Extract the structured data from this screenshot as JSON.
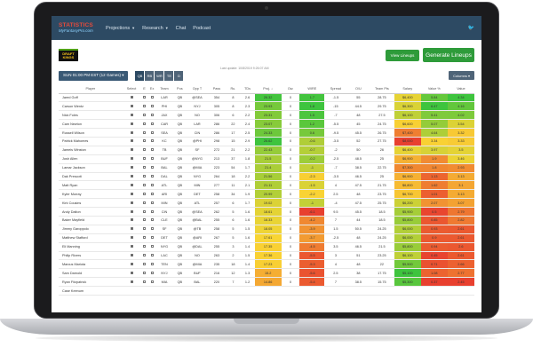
{
  "app": {
    "logo_line1": "STATISTICS",
    "logo_line2": "MyFantasyPro.com"
  },
  "nav": {
    "items": [
      {
        "label": "Projections",
        "dropdown": true
      },
      {
        "label": "Research",
        "dropdown": true
      },
      {
        "label": "Chat",
        "dropdown": false
      },
      {
        "label": "Podcast",
        "dropdown": false
      }
    ],
    "twitter_icon": "twitter-icon"
  },
  "toolbar": {
    "site_logo_text": "DRAFT KINGS",
    "view_lineups_label": "View Lineups",
    "generate_label": "Generate Lineups",
    "slate_label": "SUN 01:00 PM EST (12 Games) ▾",
    "positions": [
      "QB",
      "RB",
      "WR",
      "TE",
      "D"
    ],
    "active_position": "QB",
    "last_update": "Last update: 10/8/2019 9:26:07 AM",
    "columns_label": "Columns ▾"
  },
  "colors": {
    "nav_bg": "#2d4a63",
    "brand_green": "#2e9b3a",
    "proj_green": "#3ec43e",
    "salary_red": "#e8402f"
  },
  "table": {
    "headers": [
      "Player",
      "Select",
      "E",
      "Ex",
      "Team",
      "Pos",
      "Opp T",
      "Pass",
      "Ru.",
      "TDs",
      "Proj. ↓",
      "Ow.",
      "WIRE",
      "Spread",
      "O/U",
      "Team Pts",
      "Salary",
      "Value %",
      "Value"
    ],
    "rows": [
      {
        "player": "Jared Goff",
        "sel": true,
        "team": "LAR",
        "pos": "QB",
        "opp": "@SEA",
        "pass": "354",
        "ru": "8",
        "td": "2.6",
        "proj": "26.32",
        "own": "0",
        "wire": "1.7",
        "spread": "-1.5",
        "ou": "55",
        "tpts": "28.75",
        "salary": "$6,400",
        "vpct": "5.84",
        "value": "4.34"
      },
      {
        "player": "Carson Wentz",
        "sel": true,
        "team": "PHI",
        "pos": "QB",
        "opp": "NYJ",
        "pass": "305",
        "ru": "8",
        "td": "2.3",
        "proj": "23.93",
        "own": "0",
        "wire": "1.8",
        "spread": "-15",
        "ou": "44.5",
        "tpts": "29.75",
        "salary": "$6,300",
        "vpct": "6.47",
        "value": "4.16"
      },
      {
        "player": "Nick Foles",
        "sel": true,
        "team": "JAX",
        "pos": "QB",
        "opp": "NO",
        "pass": "306",
        "ru": "6",
        "td": "2.2",
        "proj": "23.31",
        "own": "0",
        "wire": "1.5",
        "spread": "-7",
        "ou": "48",
        "tpts": "27.5",
        "salary": "$6,100",
        "vpct": "5.41",
        "value": "4.02"
      },
      {
        "player": "Cam Newton",
        "sel": true,
        "team": "CAR",
        "pos": "QB",
        "opp": "LAR",
        "pass": "286",
        "ru": "22",
        "td": "2.4",
        "proj": "23.07",
        "own": "0",
        "wire": "1.2",
        "spread": "-5.5",
        "ou": "45",
        "tpts": "24.75",
        "salary": "$6,600",
        "vpct": "5.07",
        "value": "3.54"
      },
      {
        "player": "Russell Wilson",
        "sel": true,
        "team": "SEA",
        "pos": "QB",
        "opp": "CIN",
        "pass": "286",
        "ru": "17",
        "td": "2.5",
        "proj": "24.33",
        "own": "0",
        "wire": "0.6",
        "spread": "-9.5",
        "ou": "45.5",
        "tpts": "26.75",
        "salary": "$7,400",
        "vpct": "4.64",
        "value": "3.32"
      },
      {
        "player": "Patrick Mahomes",
        "sel": true,
        "team": "KC",
        "pos": "QB",
        "opp": "@PHI",
        "pass": "298",
        "ru": "15",
        "td": "2.9",
        "proj": "26.62",
        "own": "0",
        "wire": "-0.6",
        "spread": "-3.5",
        "ou": "52",
        "tpts": "27.75",
        "salary": "$8,000",
        "vpct": "3.34",
        "value": "3.33"
      },
      {
        "player": "Jameis Winston",
        "sel": true,
        "team": "TB",
        "pos": "QB",
        "opp": "SF",
        "pass": "272",
        "ru": "21",
        "td": "2.2",
        "proj": "22.43",
        "own": "0",
        "wire": "-0.7",
        "spread": "-2",
        "ou": "50",
        "tpts": "26",
        "salary": "$6,400",
        "vpct": "3.97",
        "value": "3.5"
      },
      {
        "player": "Josh Allen",
        "sel": true,
        "team": "BUF",
        "pos": "QB",
        "opp": "@NYG",
        "pass": "213",
        "ru": "37",
        "td": "1.8",
        "proj": "21.5",
        "own": "0",
        "wire": "-0.2",
        "spread": "-2.5",
        "ou": "48.5",
        "tpts": "25",
        "salary": "$6,900",
        "vpct": "1.9",
        "value": "3.46"
      },
      {
        "player": "Lamar Jackson",
        "sel": true,
        "team": "BAL",
        "pos": "QB",
        "opp": "@MIA",
        "pass": "223",
        "ru": "54",
        "td": "1.7",
        "proj": "21.4",
        "own": "0",
        "wire": "-1",
        "spread": "-7",
        "ou": "38.5",
        "tpts": "22.75",
        "salary": "$7,300",
        "vpct": "1.8",
        "value": "2.93"
      },
      {
        "player": "Dak Prescott",
        "sel": true,
        "team": "DAL",
        "pos": "QB",
        "opp": "NYG",
        "pass": "264",
        "ru": "18",
        "td": "2.2",
        "proj": "21.56",
        "own": "0",
        "wire": "-2.3",
        "spread": "-3.5",
        "ou": "46.5",
        "tpts": "25",
        "salary": "$6,900",
        "vpct": "1.13",
        "value": "3.13"
      },
      {
        "player": "Matt Ryan",
        "sel": true,
        "team": "ATL",
        "pos": "QB",
        "opp": "MIN",
        "pass": "277",
        "ru": "11",
        "td": "2.1",
        "proj": "21.11",
        "own": "0",
        "wire": "-1.5",
        "spread": "4",
        "ou": "47.5",
        "tpts": "21.75",
        "salary": "$6,800",
        "vpct": "1.62",
        "value": "3.1"
      },
      {
        "player": "Kyler Murray",
        "sel": true,
        "team": "ARI",
        "pos": "QB",
        "opp": "DET",
        "pass": "258",
        "ru": "34",
        "td": "1.9",
        "proj": "20.99",
        "own": "0",
        "wire": "-2.2",
        "spread": "2.5",
        "ou": "48",
        "tpts": "23.75",
        "salary": "$6,700",
        "vpct": "1.01",
        "value": "3.13"
      },
      {
        "player": "Kirk Cousins",
        "sel": true,
        "team": "MIN",
        "pos": "QB",
        "opp": "ATL",
        "pass": "257",
        "ru": "6",
        "td": "1.7",
        "proj": "19.02",
        "own": "0",
        "wire": "-1",
        "spread": "-4",
        "ou": "47.5",
        "tpts": "25.75",
        "salary": "$6,200",
        "vpct": "2.07",
        "value": "3.07"
      },
      {
        "player": "Andy Dalton",
        "sel": true,
        "team": "CIN",
        "pos": "QB",
        "opp": "@SEA",
        "pass": "262",
        "ru": "5",
        "td": "1.6",
        "proj": "18.61",
        "own": "0",
        "wire": "-6.1",
        "spread": "9.5",
        "ou": "45.5",
        "tpts": "18.5",
        "salary": "$5,900",
        "vpct": "0.5",
        "value": "2.79"
      },
      {
        "player": "Baker Mayfield",
        "sel": true,
        "team": "CLE",
        "pos": "QB",
        "opp": "@BAL",
        "pass": "255",
        "ru": "6",
        "td": "1.6",
        "proj": "18.33",
        "own": "0",
        "wire": "-4.2",
        "spread": "7",
        "ou": "44",
        "tpts": "18.5",
        "salary": "$5,800",
        "vpct": "0.85",
        "value": "2.82"
      },
      {
        "player": "Jimmy Garoppolo",
        "sel": true,
        "team": "SF",
        "pos": "QB",
        "opp": "@TB",
        "pass": "258",
        "ru": "5",
        "td": "1.5",
        "proj": "18.05",
        "own": "0",
        "wire": "-3.9",
        "spread": "1.5",
        "ou": "50.5",
        "tpts": "24.25",
        "salary": "$6,000",
        "vpct": "0.93",
        "value": "2.61"
      },
      {
        "player": "Matthew Stafford",
        "sel": true,
        "team": "DET",
        "pos": "QB",
        "opp": "@ARI",
        "pass": "267",
        "ru": "5",
        "td": "1.6",
        "proj": "17.61",
        "own": "0",
        "wire": "-3.7",
        "spread": "-2.5",
        "ou": "48",
        "tpts": "24.25",
        "salary": "$6,000",
        "vpct": "0.9",
        "value": "2.61"
      },
      {
        "player": "Eli Manning",
        "sel": true,
        "team": "NYG",
        "pos": "QB",
        "opp": "@DAL",
        "pass": "255",
        "ru": "3",
        "td": "1.4",
        "proj": "17.35",
        "own": "0",
        "wire": "-4.5",
        "spread": "3.5",
        "ou": "46.5",
        "tpts": "21.5",
        "salary": "$5,800",
        "vpct": "0.94",
        "value": "2.6"
      },
      {
        "player": "Philip Rivers",
        "sel": true,
        "team": "LAC",
        "pos": "QB",
        "opp": "NO",
        "pass": "263",
        "ru": "2",
        "td": "1.5",
        "proj": "17.36",
        "own": "0",
        "wire": "-5.5",
        "spread": "3",
        "ou": "51",
        "tpts": "23.25",
        "salary": "$6,100",
        "vpct": "0.45",
        "value": "2.61"
      },
      {
        "player": "Marcus Mariota",
        "sel": true,
        "team": "TEN",
        "pos": "QB",
        "opp": "@MIA",
        "pass": "235",
        "ru": "18",
        "td": "1.4",
        "proj": "17.23",
        "own": "0",
        "wire": "-5.3",
        "spread": "4",
        "ou": "48",
        "tpts": "22",
        "salary": "$5,500",
        "vpct": "0.71",
        "value": "2.66"
      },
      {
        "player": "Sam Darnold",
        "sel": true,
        "team": "NYJ",
        "pos": "QB",
        "opp": "BUF",
        "pass": "216",
        "ru": "12",
        "td": "1.3",
        "proj": "15.2",
        "own": "0",
        "wire": "-5.6",
        "spread": "2.5",
        "ou": "38",
        "tpts": "17.75",
        "salary": "$5,100",
        "vpct": "1.08",
        "value": "2.77"
      },
      {
        "player": "Ryan Fitzpatrick",
        "sel": true,
        "team": "MIA",
        "pos": "QB",
        "opp": "BAL",
        "pass": "220",
        "ru": "7",
        "td": "1.2",
        "proj": "14.86",
        "own": "0",
        "wire": "-5.4",
        "spread": "7",
        "ou": "38.5",
        "tpts": "15.75",
        "salary": "$5,300",
        "vpct": "0.37",
        "value": "2.45"
      },
      {
        "player": "Case Keenum",
        "sel": false,
        "team": "",
        "pos": "",
        "opp": "",
        "pass": "",
        "ru": "",
        "td": "",
        "proj": "",
        "own": "",
        "wire": "",
        "spread": "",
        "ou": "",
        "tpts": "",
        "salary": "",
        "vpct": "",
        "value": ""
      }
    ]
  }
}
